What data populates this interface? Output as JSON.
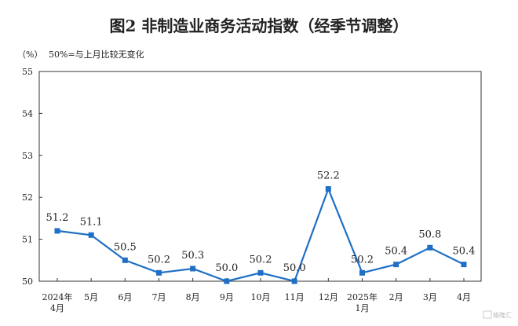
{
  "chart_data": {
    "type": "line",
    "title": "图2  非制造业商务活动指数（经季节调整）",
    "unit_label": "（%）",
    "note": "50%=与上月比较无变化",
    "ylim": [
      50,
      55
    ],
    "yticks": [
      "50",
      "51",
      "52",
      "53",
      "54",
      "55"
    ],
    "categories": [
      "2024年\n4月",
      "5月",
      "6月",
      "7月",
      "8月",
      "9月",
      "10月",
      "11月",
      "12月",
      "2025年\n1月",
      "2月",
      "3月",
      "4月"
    ],
    "values": [
      51.2,
      51.1,
      50.5,
      50.2,
      50.3,
      50.0,
      50.2,
      50.0,
      52.2,
      50.2,
      50.4,
      50.8,
      50.4
    ],
    "data_labels": [
      "51.2",
      "51.1",
      "50.5",
      "50.2",
      "50.3",
      "50.0",
      "50.2",
      "50.0",
      "52.2",
      "50.2",
      "50.4",
      "50.8",
      "50.4"
    ],
    "grid": false,
    "line_color": "#1f6fc6"
  }
}
